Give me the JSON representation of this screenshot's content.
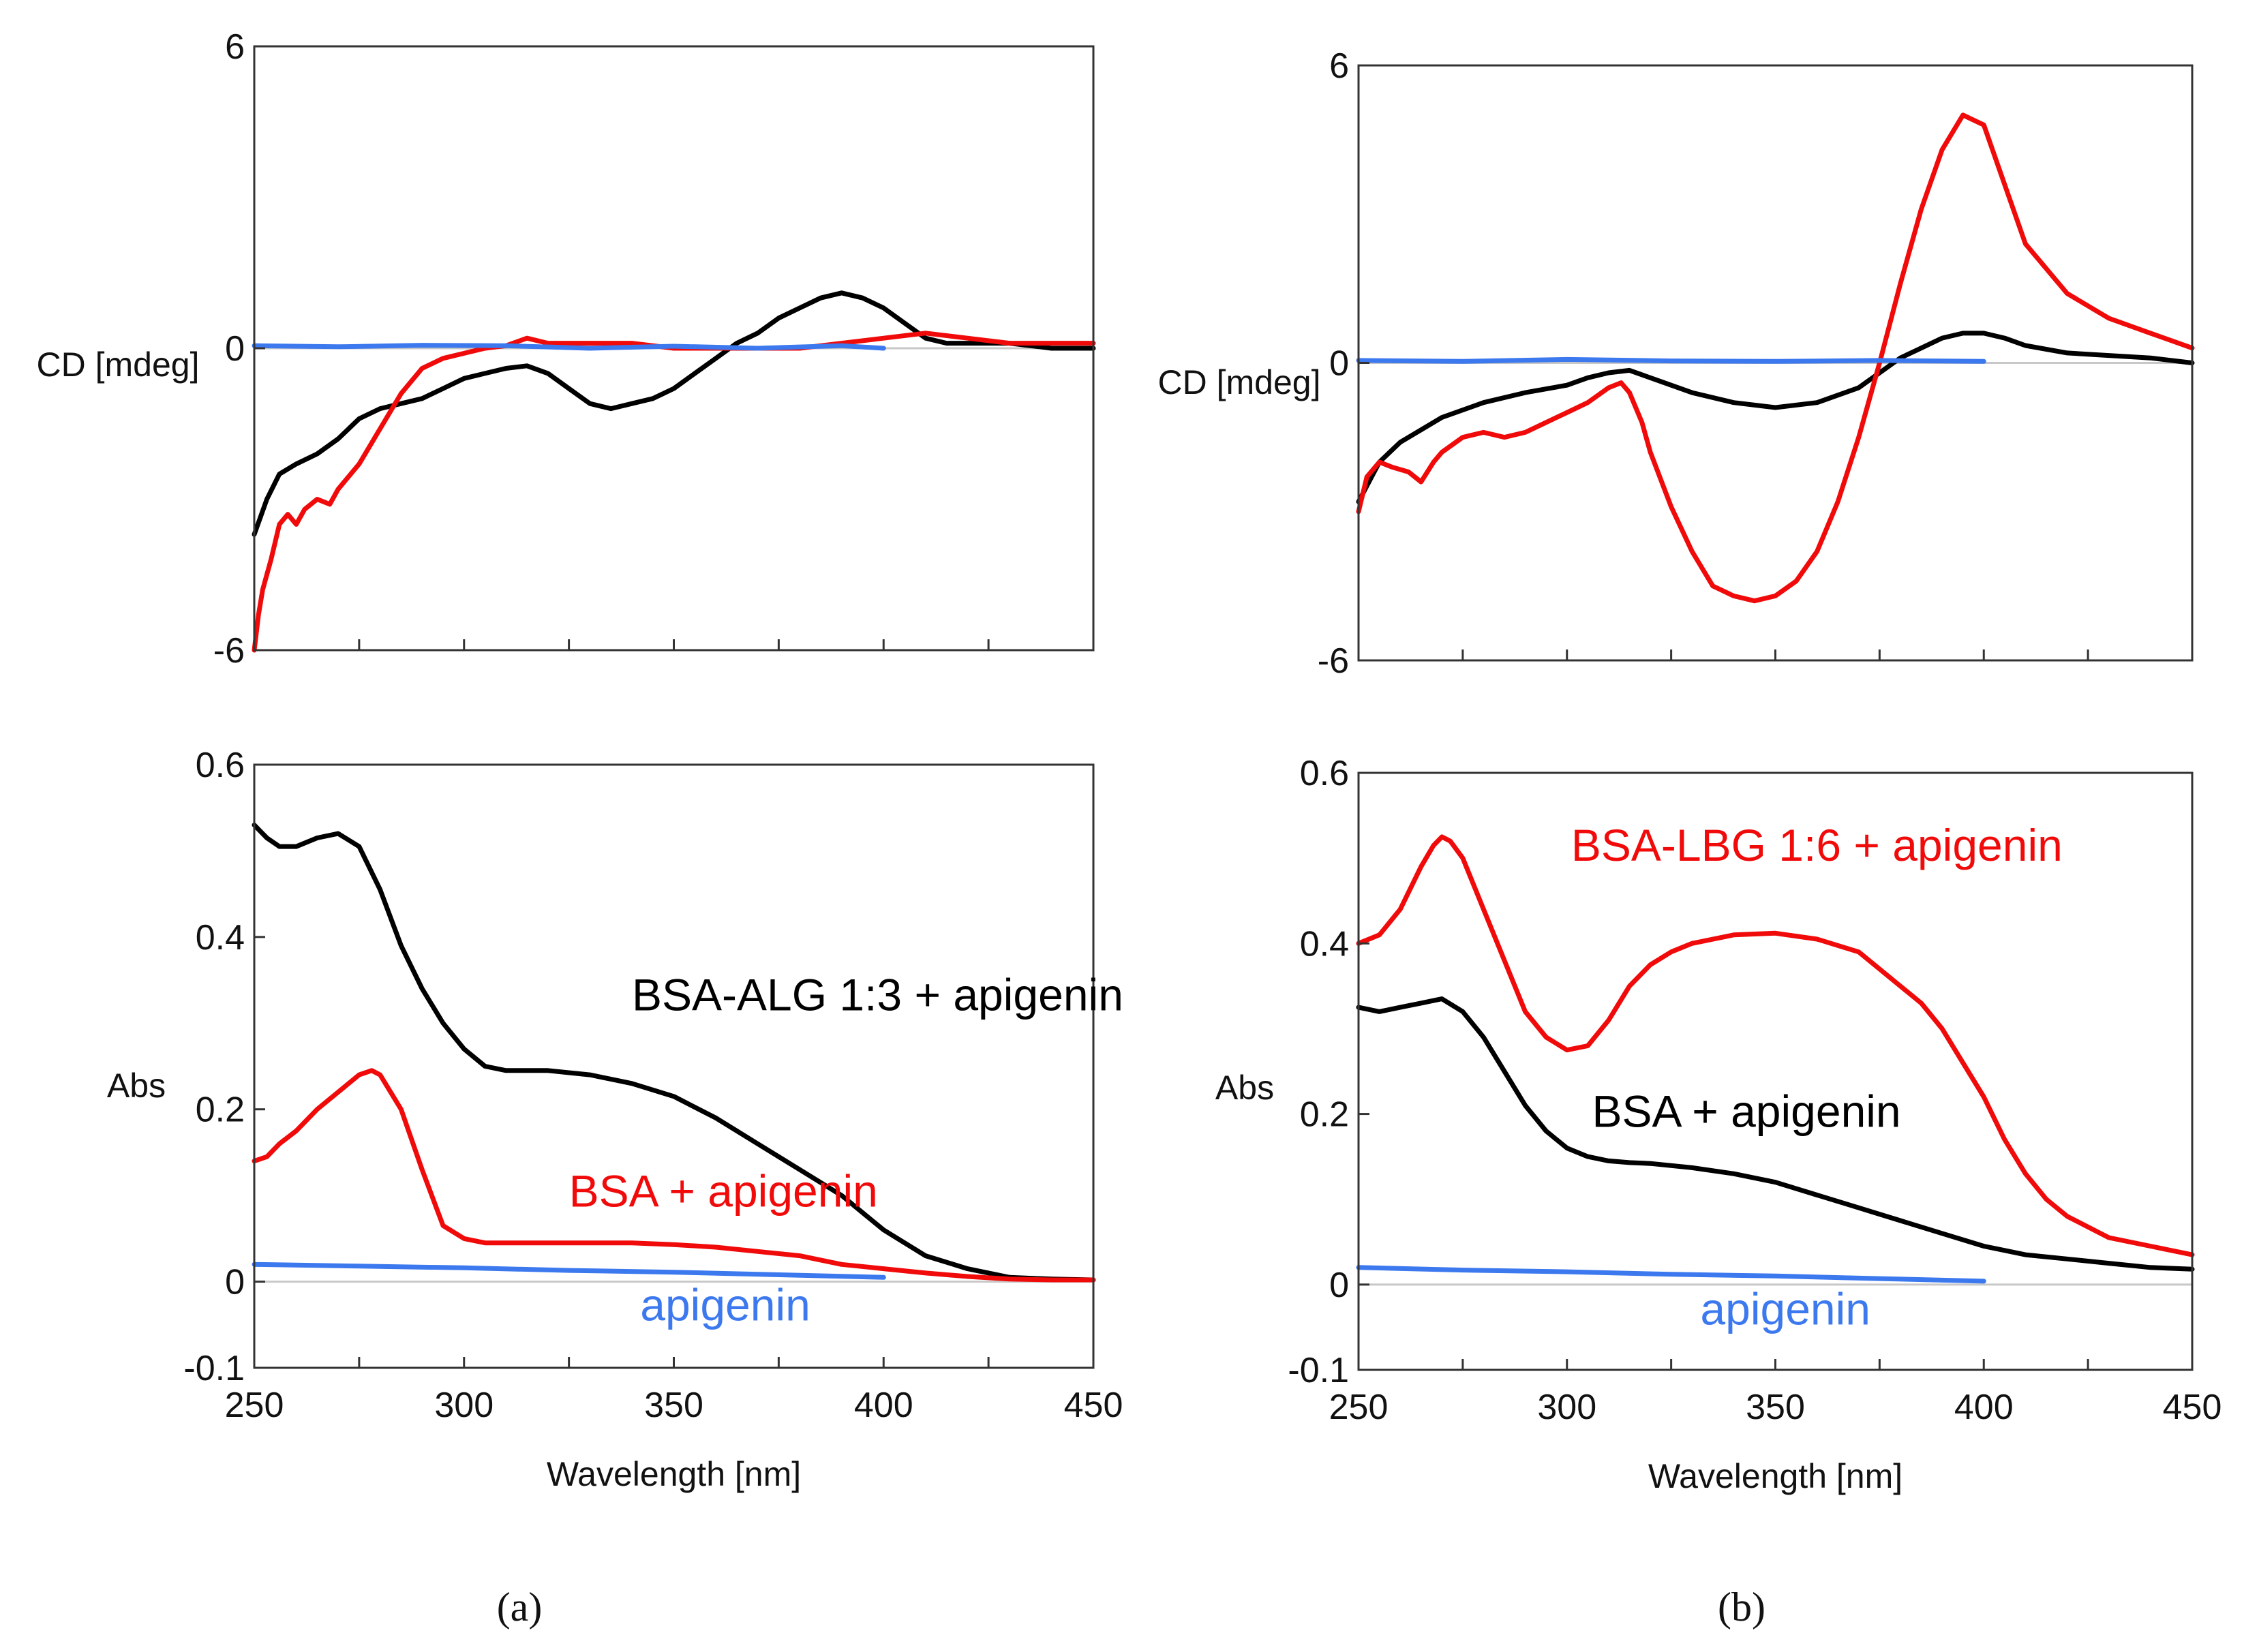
{
  "colors": {
    "black": "#000000",
    "red": "#f00a0a",
    "blue": "#3d79ee",
    "zero_line": "#c8c8c8"
  },
  "panel_labels": {
    "a": "(a)",
    "b": "(b)"
  },
  "chart_data": [
    {
      "id": "a-cd",
      "type": "line",
      "xlabel": "",
      "ylabel": "CD [mdeg]",
      "xlim": [
        250,
        450
      ],
      "ylim": [
        -6,
        6
      ],
      "y_tick_labels": [
        "6",
        "0",
        "-6"
      ],
      "y_ticks": [
        6,
        0,
        -6
      ],
      "x_tick_labels": [],
      "x_minor_ticks": [
        275,
        300,
        325,
        350,
        375,
        400,
        425
      ],
      "zero_line": true,
      "grid": false,
      "series": [
        {
          "color": "black",
          "x": [
            250,
            253,
            256,
            260,
            265,
            270,
            275,
            280,
            285,
            290,
            295,
            300,
            305,
            310,
            315,
            320,
            325,
            330,
            335,
            340,
            345,
            350,
            355,
            360,
            365,
            370,
            375,
            380,
            385,
            390,
            395,
            400,
            405,
            410,
            415,
            420,
            425,
            430,
            440,
            450
          ],
          "y": [
            -3.7,
            -3.0,
            -2.5,
            -2.3,
            -2.1,
            -1.8,
            -1.4,
            -1.2,
            -1.1,
            -1.0,
            -0.8,
            -0.6,
            -0.5,
            -0.4,
            -0.35,
            -0.5,
            -0.8,
            -1.1,
            -1.2,
            -1.1,
            -1.0,
            -0.8,
            -0.5,
            -0.2,
            0.1,
            0.3,
            0.6,
            0.8,
            1.0,
            1.1,
            1.0,
            0.8,
            0.5,
            0.2,
            0.1,
            0.1,
            0.1,
            0.1,
            0.0,
            0.0
          ]
        },
        {
          "color": "red",
          "x": [
            250,
            251,
            252,
            254,
            256,
            258,
            260,
            262,
            265,
            268,
            270,
            275,
            280,
            285,
            290,
            295,
            300,
            305,
            310,
            315,
            320,
            330,
            340,
            350,
            360,
            370,
            380,
            390,
            400,
            410,
            420,
            430,
            440,
            450
          ],
          "y": [
            -6.0,
            -5.3,
            -4.8,
            -4.2,
            -3.5,
            -3.3,
            -3.5,
            -3.2,
            -3.0,
            -3.1,
            -2.8,
            -2.3,
            -1.6,
            -0.9,
            -0.4,
            -0.2,
            -0.1,
            0.0,
            0.05,
            0.2,
            0.1,
            0.1,
            0.1,
            0.0,
            0.0,
            0.0,
            0.0,
            0.1,
            0.2,
            0.3,
            0.2,
            0.1,
            0.1,
            0.1
          ]
        },
        {
          "color": "blue",
          "x": [
            250,
            270,
            290,
            310,
            330,
            350,
            370,
            390,
            400
          ],
          "y": [
            0.05,
            0.03,
            0.06,
            0.05,
            0.0,
            0.04,
            0.0,
            0.05,
            0.0
          ]
        }
      ]
    },
    {
      "id": "a-abs",
      "type": "line",
      "xlabel": "Wavelength [nm]",
      "ylabel": "Abs",
      "xlim": [
        250,
        450
      ],
      "ylim": [
        -0.1,
        0.6
      ],
      "y_tick_labels": [
        "0.6",
        "0.4",
        "0.2",
        "0",
        "-0.1"
      ],
      "y_ticks": [
        0.6,
        0.4,
        0.2,
        0,
        -0.1
      ],
      "x_tick_labels": [
        "250",
        "300",
        "350",
        "400",
        "450"
      ],
      "x_ticks": [
        250,
        300,
        350,
        400,
        450
      ],
      "x_minor_ticks": [
        275,
        325,
        375,
        425
      ],
      "zero_line": true,
      "grid": false,
      "annotations": [
        {
          "text": "BSA-ALG 1:3 + apigenin",
          "color": "black",
          "x": 340,
          "y": 0.315
        },
        {
          "text": "BSA + apigenin",
          "color": "red",
          "x": 325,
          "y": 0.087
        },
        {
          "text": "apigenin",
          "color": "blue",
          "x": 342,
          "y": -0.045
        }
      ],
      "series": [
        {
          "color": "black",
          "x": [
            250,
            253,
            256,
            260,
            265,
            270,
            275,
            280,
            285,
            290,
            295,
            300,
            305,
            310,
            315,
            320,
            330,
            340,
            350,
            360,
            370,
            380,
            390,
            400,
            410,
            420,
            430,
            440,
            450
          ],
          "y": [
            0.53,
            0.515,
            0.505,
            0.505,
            0.515,
            0.52,
            0.505,
            0.455,
            0.39,
            0.34,
            0.3,
            0.27,
            0.25,
            0.245,
            0.245,
            0.245,
            0.24,
            0.23,
            0.215,
            0.19,
            0.16,
            0.13,
            0.1,
            0.06,
            0.03,
            0.015,
            0.005,
            0.003,
            0.002
          ]
        },
        {
          "color": "red",
          "x": [
            250,
            253,
            256,
            260,
            265,
            270,
            275,
            278,
            280,
            285,
            290,
            295,
            300,
            305,
            310,
            320,
            330,
            340,
            350,
            360,
            370,
            380,
            390,
            400,
            410,
            420,
            430,
            440,
            450
          ],
          "y": [
            0.14,
            0.145,
            0.16,
            0.175,
            0.2,
            0.22,
            0.24,
            0.245,
            0.24,
            0.2,
            0.13,
            0.065,
            0.05,
            0.045,
            0.045,
            0.045,
            0.045,
            0.045,
            0.043,
            0.04,
            0.035,
            0.03,
            0.02,
            0.015,
            0.01,
            0.006,
            0.003,
            0.002,
            0.002
          ]
        },
        {
          "color": "blue",
          "x": [
            250,
            275,
            300,
            325,
            350,
            375,
            400
          ],
          "y": [
            0.02,
            0.018,
            0.016,
            0.013,
            0.011,
            0.008,
            0.005
          ]
        }
      ]
    },
    {
      "id": "b-cd",
      "type": "line",
      "xlabel": "",
      "ylabel": "CD [mdeg]",
      "xlim": [
        250,
        450
      ],
      "ylim": [
        -6,
        6
      ],
      "y_tick_labels": [
        "6",
        "0",
        "-6"
      ],
      "y_ticks": [
        6,
        0,
        -6
      ],
      "x_tick_labels": [],
      "x_minor_ticks": [
        275,
        300,
        325,
        350,
        375,
        400,
        425
      ],
      "zero_line": true,
      "grid": false,
      "series": [
        {
          "color": "black",
          "x": [
            250,
            255,
            260,
            270,
            280,
            290,
            300,
            305,
            310,
            315,
            320,
            330,
            340,
            350,
            360,
            370,
            375,
            380,
            385,
            390,
            395,
            400,
            405,
            410,
            420,
            430,
            440,
            450
          ],
          "y": [
            -2.8,
            -2.0,
            -1.6,
            -1.1,
            -0.8,
            -0.6,
            -0.45,
            -0.3,
            -0.2,
            -0.15,
            -0.3,
            -0.6,
            -0.8,
            -0.9,
            -0.8,
            -0.5,
            -0.2,
            0.1,
            0.3,
            0.5,
            0.6,
            0.6,
            0.5,
            0.35,
            0.2,
            0.15,
            0.1,
            0.0
          ]
        },
        {
          "color": "red",
          "x": [
            250,
            252,
            255,
            258,
            262,
            265,
            268,
            270,
            275,
            280,
            285,
            290,
            295,
            300,
            305,
            310,
            313,
            315,
            318,
            320,
            325,
            330,
            335,
            340,
            345,
            350,
            355,
            360,
            365,
            370,
            375,
            380,
            385,
            390,
            395,
            400,
            405,
            410,
            420,
            430,
            440,
            450
          ],
          "y": [
            -3.0,
            -2.3,
            -2.0,
            -2.1,
            -2.2,
            -2.4,
            -2.0,
            -1.8,
            -1.5,
            -1.4,
            -1.5,
            -1.4,
            -1.2,
            -1.0,
            -0.8,
            -0.5,
            -0.4,
            -0.6,
            -1.2,
            -1.8,
            -2.9,
            -3.8,
            -4.5,
            -4.7,
            -4.8,
            -4.7,
            -4.4,
            -3.8,
            -2.8,
            -1.5,
            0.0,
            1.6,
            3.1,
            4.3,
            5.0,
            4.8,
            3.6,
            2.4,
            1.4,
            0.9,
            0.6,
            0.3
          ]
        },
        {
          "color": "blue",
          "x": [
            250,
            275,
            300,
            325,
            350,
            375,
            400
          ],
          "y": [
            0.05,
            0.03,
            0.07,
            0.04,
            0.03,
            0.05,
            0.03
          ]
        }
      ]
    },
    {
      "id": "b-abs",
      "type": "line",
      "xlabel": "Wavelength [nm]",
      "ylabel": "Abs",
      "xlim": [
        250,
        450
      ],
      "ylim": [
        -0.1,
        0.6
      ],
      "y_tick_labels": [
        "0.6",
        "0.4",
        "0.2",
        "0",
        "-0.1"
      ],
      "y_ticks": [
        0.6,
        0.4,
        0.2,
        0,
        -0.1
      ],
      "x_tick_labels": [
        "250",
        "300",
        "350",
        "400",
        "450"
      ],
      "x_ticks": [
        250,
        300,
        350,
        400,
        450
      ],
      "x_minor_ticks": [
        275,
        325,
        375,
        425
      ],
      "zero_line": true,
      "grid": false,
      "annotations": [
        {
          "text": "BSA-LBG 1:6 + apigenin",
          "color": "red",
          "x": 301,
          "y": 0.497
        },
        {
          "text": "BSA + apigenin",
          "color": "black",
          "x": 306,
          "y": 0.185
        },
        {
          "text": "apigenin",
          "color": "blue",
          "x": 332,
          "y": -0.047
        }
      ],
      "series": [
        {
          "color": "black",
          "x": [
            250,
            255,
            260,
            265,
            270,
            275,
            280,
            285,
            290,
            295,
            300,
            305,
            310,
            315,
            320,
            330,
            340,
            350,
            360,
            370,
            380,
            390,
            400,
            410,
            420,
            430,
            440,
            450
          ],
          "y": [
            0.325,
            0.32,
            0.325,
            0.33,
            0.335,
            0.32,
            0.29,
            0.25,
            0.21,
            0.18,
            0.16,
            0.15,
            0.145,
            0.143,
            0.142,
            0.137,
            0.13,
            0.12,
            0.105,
            0.09,
            0.075,
            0.06,
            0.045,
            0.035,
            0.03,
            0.025,
            0.02,
            0.018
          ]
        },
        {
          "color": "red",
          "x": [
            250,
            255,
            260,
            265,
            268,
            270,
            272,
            275,
            280,
            285,
            290,
            295,
            300,
            305,
            310,
            315,
            320,
            325,
            330,
            340,
            350,
            360,
            370,
            380,
            385,
            390,
            395,
            400,
            405,
            410,
            415,
            420,
            430,
            440,
            450
          ],
          "y": [
            0.4,
            0.41,
            0.44,
            0.49,
            0.515,
            0.525,
            0.52,
            0.5,
            0.44,
            0.38,
            0.32,
            0.29,
            0.275,
            0.28,
            0.31,
            0.35,
            0.375,
            0.39,
            0.4,
            0.41,
            0.412,
            0.405,
            0.39,
            0.35,
            0.33,
            0.3,
            0.26,
            0.22,
            0.17,
            0.13,
            0.1,
            0.08,
            0.055,
            0.045,
            0.035
          ]
        },
        {
          "color": "blue",
          "x": [
            250,
            275,
            300,
            325,
            350,
            375,
            400
          ],
          "y": [
            0.02,
            0.017,
            0.015,
            0.012,
            0.01,
            0.007,
            0.004
          ]
        }
      ]
    }
  ]
}
